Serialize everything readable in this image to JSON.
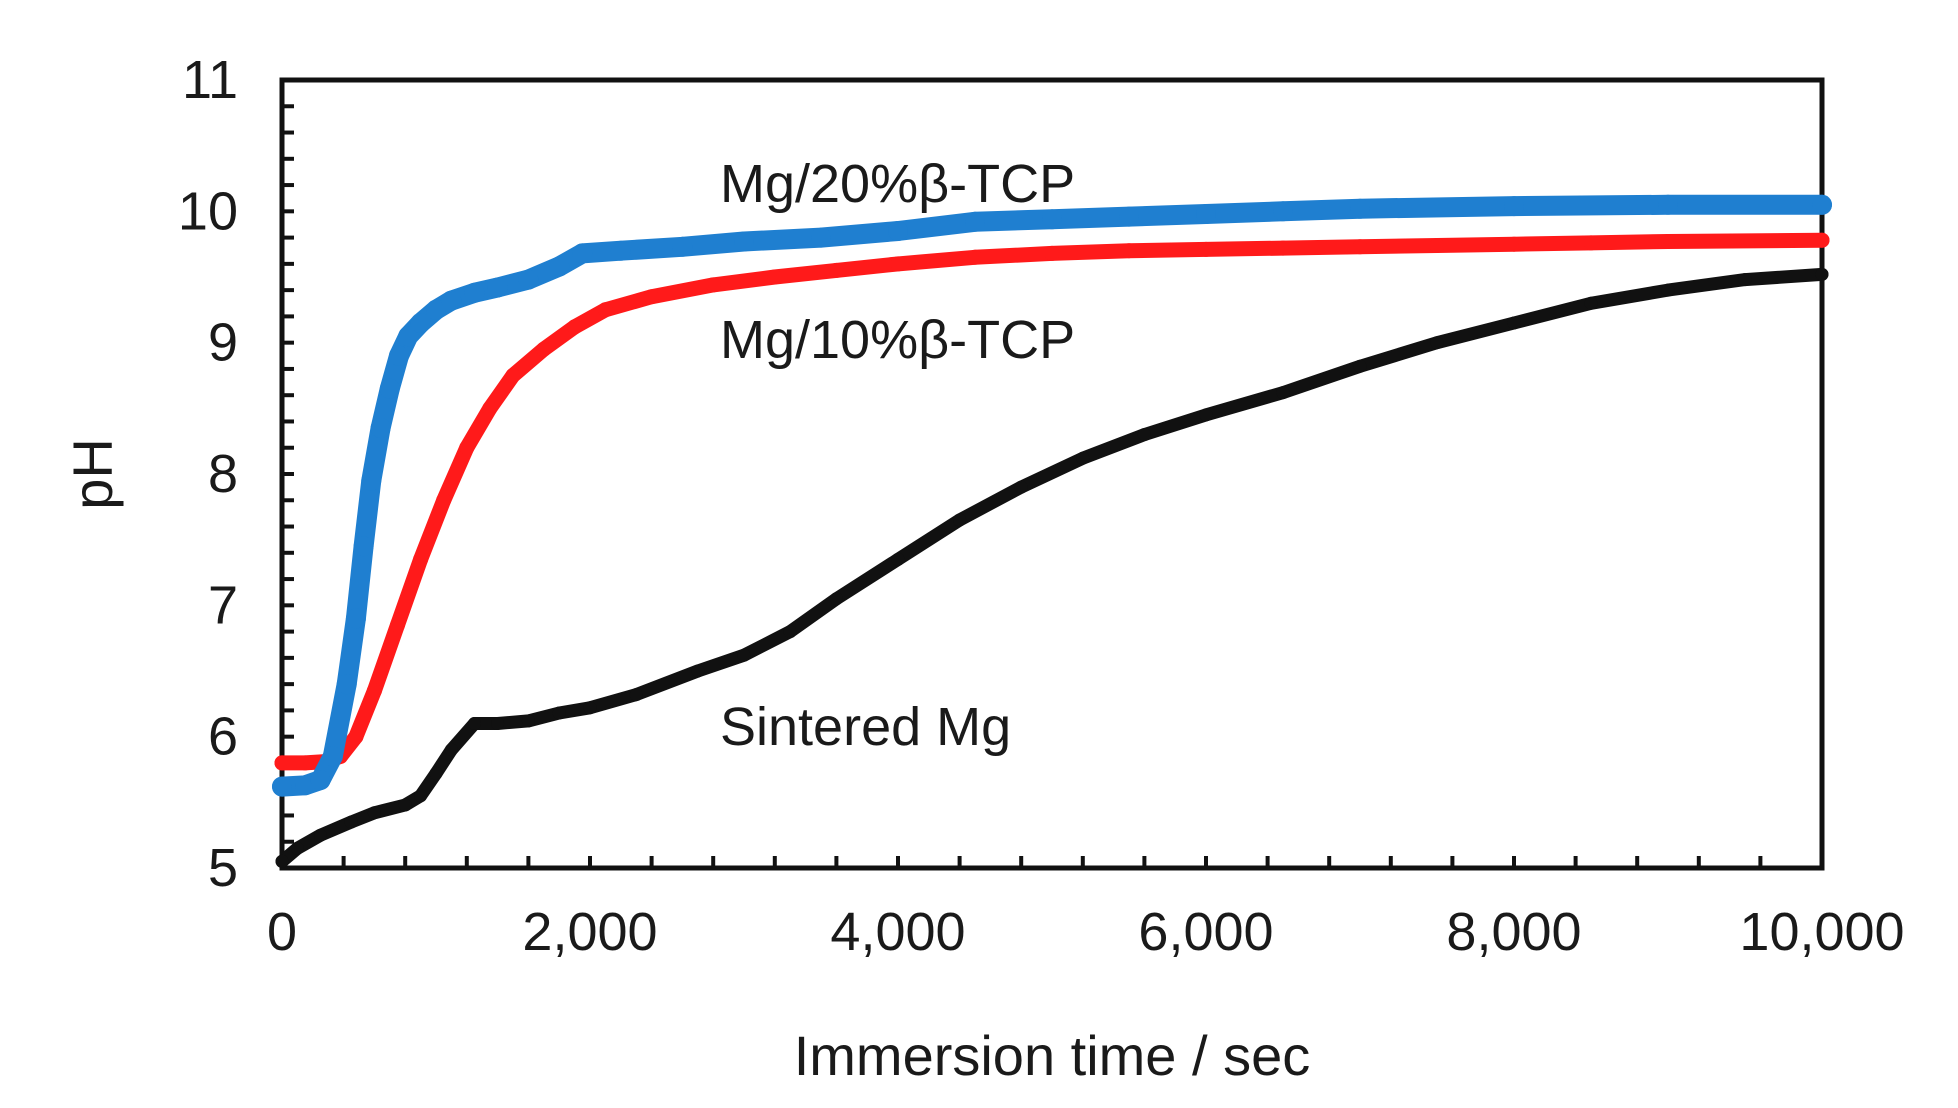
{
  "chart_data": {
    "type": "line",
    "title": "",
    "xlabel": "Immersion time / sec",
    "ylabel": "pH",
    "xlim": [
      0,
      10000
    ],
    "ylim": [
      5,
      11
    ],
    "xticks": [
      0,
      2000,
      4000,
      6000,
      8000,
      10000
    ],
    "xtick_labels": [
      "0",
      "2,000",
      "4,000",
      "6,000",
      "8,000",
      "10,000"
    ],
    "yticks": [
      5,
      6,
      7,
      8,
      9,
      10,
      11
    ],
    "ytick_labels": [
      "5",
      "6",
      "7",
      "8",
      "9",
      "10",
      "11"
    ],
    "grid": false,
    "series": [
      {
        "name": "Mg/20%β-TCP",
        "color": "#1f7fd0",
        "x": [
          0,
          150,
          250,
          330,
          420,
          480,
          530,
          580,
          640,
          700,
          760,
          820,
          900,
          1000,
          1100,
          1250,
          1400,
          1600,
          1800,
          1950,
          2200,
          2600,
          3000,
          3500,
          4000,
          4500,
          5000,
          5500,
          6000,
          6500,
          7000,
          8000,
          9000,
          10000
        ],
        "y": [
          5.62,
          5.63,
          5.67,
          5.85,
          6.4,
          6.9,
          7.45,
          7.95,
          8.35,
          8.65,
          8.9,
          9.05,
          9.15,
          9.25,
          9.32,
          9.38,
          9.42,
          9.48,
          9.58,
          9.68,
          9.7,
          9.73,
          9.77,
          9.8,
          9.85,
          9.92,
          9.94,
          9.96,
          9.98,
          10.0,
          10.02,
          10.04,
          10.05,
          10.05
        ]
      },
      {
        "name": "Mg/10%β-TCP",
        "color": "#ff1a1a",
        "x": [
          0,
          150,
          280,
          380,
          480,
          600,
          750,
          900,
          1050,
          1200,
          1350,
          1500,
          1700,
          1900,
          2100,
          2400,
          2800,
          3200,
          3600,
          4000,
          4500,
          5000,
          5500,
          6000,
          6500,
          7000,
          7500,
          8000,
          8500,
          9000,
          10000
        ],
        "y": [
          5.8,
          5.8,
          5.81,
          5.85,
          6.0,
          6.35,
          6.85,
          7.35,
          7.8,
          8.2,
          8.5,
          8.75,
          8.95,
          9.12,
          9.25,
          9.35,
          9.44,
          9.5,
          9.55,
          9.6,
          9.65,
          9.68,
          9.7,
          9.71,
          9.72,
          9.73,
          9.74,
          9.75,
          9.76,
          9.77,
          9.78
        ]
      },
      {
        "name": "Sintered Mg",
        "color": "#111111",
        "x": [
          0,
          100,
          250,
          450,
          600,
          800,
          900,
          1000,
          1100,
          1250,
          1400,
          1600,
          1800,
          2000,
          2300,
          2700,
          3000,
          3300,
          3600,
          4000,
          4400,
          4800,
          5200,
          5600,
          6000,
          6500,
          7000,
          7500,
          8000,
          8500,
          9000,
          9500,
          10000
        ],
        "y": [
          5.05,
          5.15,
          5.25,
          5.35,
          5.42,
          5.48,
          5.55,
          5.72,
          5.9,
          6.1,
          6.1,
          6.12,
          6.18,
          6.22,
          6.32,
          6.5,
          6.62,
          6.8,
          7.05,
          7.35,
          7.65,
          7.9,
          8.12,
          8.3,
          8.45,
          8.62,
          8.82,
          9.0,
          9.15,
          9.3,
          9.4,
          9.48,
          9.52
        ]
      }
    ],
    "annotations": [
      "Mg/20%β-TCP",
      "Mg/10%β-TCP",
      "Sintered Mg"
    ]
  }
}
